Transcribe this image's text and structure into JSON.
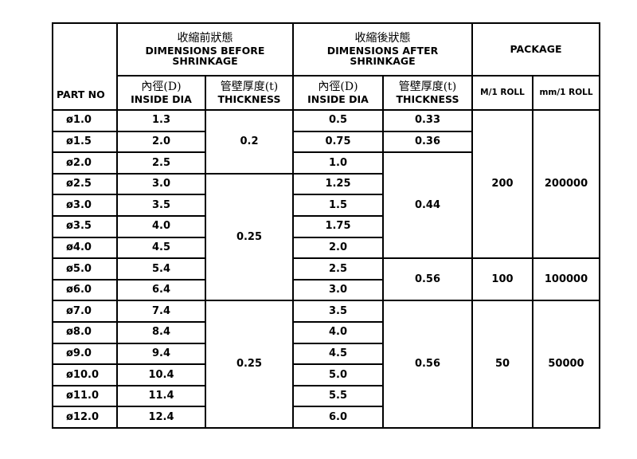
{
  "headers": {
    "part_no": "PART NO",
    "before": {
      "zh": "收縮前狀態",
      "en": "DIMENSIONS BEFORE SHRINKAGE"
    },
    "after": {
      "zh": "收縮後狀態",
      "en": "DIMENSIONS AFTER SHRINKAGE"
    },
    "package": "PACKAGE",
    "inside_dia": {
      "zh": "內徑(D)",
      "en": "INSIDE DIA"
    },
    "thickness": {
      "zh": "管壁厚度(t)",
      "en": "THICKNESS"
    },
    "m_roll": "M/1 ROLL",
    "mm_roll": "mm/1 ROLL"
  },
  "rows": [
    {
      "part": "ø1.0",
      "id_before": "1.3",
      "id_after": "0.5"
    },
    {
      "part": "ø1.5",
      "id_before": "2.0",
      "id_after": "0.75"
    },
    {
      "part": "ø2.0",
      "id_before": "2.5",
      "id_after": "1.0"
    },
    {
      "part": "ø2.5",
      "id_before": "3.0",
      "id_after": "1.25"
    },
    {
      "part": "ø3.0",
      "id_before": "3.5",
      "id_after": "1.5"
    },
    {
      "part": "ø3.5",
      "id_before": "4.0",
      "id_after": "1.75"
    },
    {
      "part": "ø4.0",
      "id_before": "4.5",
      "id_after": "2.0"
    },
    {
      "part": "ø5.0",
      "id_before": "5.4",
      "id_after": "2.5"
    },
    {
      "part": "ø6.0",
      "id_before": "6.4",
      "id_after": "3.0"
    },
    {
      "part": "ø7.0",
      "id_before": "7.4",
      "id_after": "3.5"
    },
    {
      "part": "ø8.0",
      "id_before": "8.4",
      "id_after": "4.0"
    },
    {
      "part": "ø9.0",
      "id_before": "9.4",
      "id_after": "4.5"
    },
    {
      "part": "ø10.0",
      "id_before": "10.4",
      "id_after": "5.0"
    },
    {
      "part": "ø11.0",
      "id_before": "11.4",
      "id_after": "5.5"
    },
    {
      "part": "ø12.0",
      "id_before": "12.4",
      "id_after": "6.0"
    }
  ],
  "thickness_before": [
    {
      "value": "0.2",
      "start": 0,
      "span": 3
    },
    {
      "value": "0.25",
      "start": 3,
      "span": 6
    },
    {
      "value": "0.25",
      "start": 9,
      "span": 6
    }
  ],
  "thickness_after": [
    {
      "value": "0.33",
      "start": 0,
      "span": 1
    },
    {
      "value": "0.36",
      "start": 1,
      "span": 1
    },
    {
      "value": "0.44",
      "start": 2,
      "span": 5
    },
    {
      "value": "0.56",
      "start": 7,
      "span": 2
    },
    {
      "value": "0.56",
      "start": 9,
      "span": 6
    }
  ],
  "package": [
    {
      "m_roll": "200",
      "mm_roll": "200000",
      "start": 0,
      "span": 7
    },
    {
      "m_roll": "100",
      "mm_roll": "100000",
      "start": 7,
      "span": 2
    },
    {
      "m_roll": "50",
      "mm_roll": "50000",
      "start": 9,
      "span": 6
    }
  ]
}
